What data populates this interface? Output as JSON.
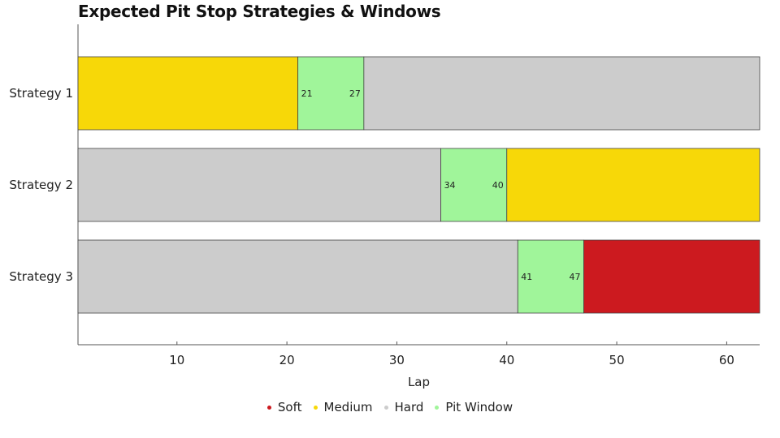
{
  "chart_data": {
    "type": "bar",
    "orientation": "horizontal",
    "stacked": true,
    "title": "Expected Pit Stop Strategies & Windows",
    "xlabel": "Lap",
    "ylabel": "",
    "xlim": [
      1,
      63
    ],
    "xticks": [
      10,
      20,
      30,
      40,
      50,
      60
    ],
    "grid": false,
    "legend_position": "bottom",
    "categories": [
      "Strategy 1",
      "Strategy 2",
      "Strategy 3"
    ],
    "legend": [
      {
        "label": "Soft",
        "color": "#cc1a1f"
      },
      {
        "label": "Medium",
        "color": "#f7d808"
      },
      {
        "label": "Hard",
        "color": "#cccccc"
      },
      {
        "label": "Pit Window",
        "color": "#a0f59a"
      }
    ],
    "strategies": [
      {
        "name": "Strategy 1",
        "segments": [
          {
            "compound": "Medium",
            "start": 1,
            "end": 21
          },
          {
            "compound": "Pit Window",
            "start": 21,
            "end": 27
          },
          {
            "compound": "Hard",
            "start": 27,
            "end": 63
          }
        ],
        "window_labels": [
          "21",
          "27"
        ]
      },
      {
        "name": "Strategy 2",
        "segments": [
          {
            "compound": "Hard",
            "start": 1,
            "end": 34
          },
          {
            "compound": "Pit Window",
            "start": 34,
            "end": 40
          },
          {
            "compound": "Medium",
            "start": 40,
            "end": 63
          }
        ],
        "window_labels": [
          "34",
          "40"
        ]
      },
      {
        "name": "Strategy 3",
        "segments": [
          {
            "compound": "Hard",
            "start": 1,
            "end": 41
          },
          {
            "compound": "Pit Window",
            "start": 41,
            "end": 47
          },
          {
            "compound": "Soft",
            "start": 47,
            "end": 63
          }
        ],
        "window_labels": [
          "41",
          "47"
        ]
      }
    ]
  }
}
